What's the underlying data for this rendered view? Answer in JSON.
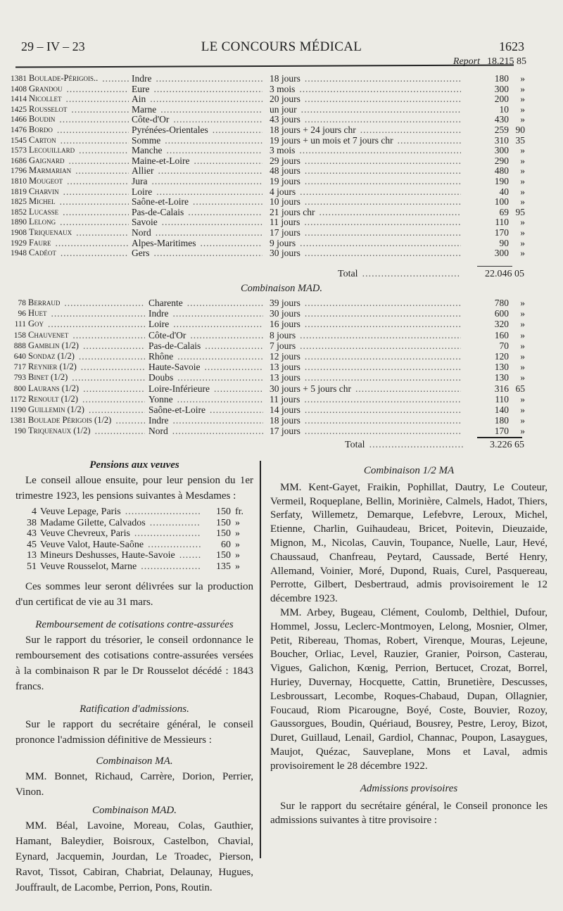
{
  "header": {
    "date": "29 – IV – 23",
    "title": "LE CONCOURS MÉDICAL",
    "page": "1623"
  },
  "report": {
    "label": "Report",
    "value": "18.215 85"
  },
  "table1": {
    "rows": [
      [
        "1381",
        "Boulade-Périgois..",
        "Indre",
        "18 jours",
        "180",
        "»"
      ],
      [
        "1408",
        "Grandou",
        "Eure",
        "3 mois",
        "300",
        "»"
      ],
      [
        "1414",
        "Nicollet",
        "Ain",
        "20 jours",
        "200",
        "»"
      ],
      [
        "1425",
        "Rousselot",
        "Marne",
        "un jour",
        "10",
        "»"
      ],
      [
        "1466",
        "Boudin",
        "Côte-d'Or",
        "43 jours",
        "430",
        "»"
      ],
      [
        "1476",
        "Bordo",
        "Pyrénées-Orientales",
        "18 jours + 24 jours chr",
        "259",
        "90"
      ],
      [
        "1545",
        "Carton",
        "Somme",
        "19 jours + un mois et 7 jours chr",
        "310",
        "35"
      ],
      [
        "1573",
        "Lecouillard",
        "Manche",
        "3 mois",
        "300",
        "»"
      ],
      [
        "1686",
        "Gaignard",
        "Maine-et-Loire",
        "29 jours",
        "290",
        "»"
      ],
      [
        "1796",
        "Marmarian",
        "Allier",
        "48 jours",
        "480",
        "»"
      ],
      [
        "1810",
        "Mougeot",
        "Jura",
        "19 jours",
        "190",
        "»"
      ],
      [
        "1819",
        "Charvin",
        "Loire",
        "4 jours",
        "40",
        "»"
      ],
      [
        "1825",
        "Michel",
        "Saône-et-Loire",
        "10 jours",
        "100",
        "»"
      ],
      [
        "1852",
        "Lucasse",
        "Pas-de-Calais",
        "21 jours chr",
        "69",
        "95"
      ],
      [
        "1890",
        "Lelong",
        "Savoie",
        "11 jours",
        "110",
        "»"
      ],
      [
        "1908",
        "Triquenaux",
        "Nord",
        "17 jours",
        "170",
        "»"
      ],
      [
        "1929",
        "Faure",
        "Alpes-Maritimes",
        "9 jours",
        "90",
        "»"
      ],
      [
        "1948",
        "Cadéot",
        "Gers",
        "30 jours",
        "300",
        "»"
      ]
    ],
    "total_label": "Total",
    "total_value": "22.046 05"
  },
  "table2": {
    "title": "Combinaison MAD.",
    "rows": [
      [
        "78",
        "Berraud",
        "Charente",
        "39 jours",
        "780",
        "»"
      ],
      [
        "96",
        "Huet",
        "Indre",
        "30 jours",
        "600",
        "»"
      ],
      [
        "111",
        "Goy",
        "Loire",
        "16 jours",
        "320",
        "»"
      ],
      [
        "158",
        "Chauvenet",
        "Côte-d'Or",
        "8 jours",
        "160",
        "»"
      ],
      [
        "888",
        "Gamblin (1/2)",
        "Pas-de-Calais",
        "7 jours",
        "70",
        "»"
      ],
      [
        "640",
        "Sondaz (1/2)",
        "Rhône",
        "12 jours",
        "120",
        "»"
      ],
      [
        "717",
        "Reynier (1/2)",
        "Haute-Savoie",
        "13 jours",
        "130",
        "»"
      ],
      [
        "793",
        "Binet (1/2)",
        "Doubs",
        "13 jours",
        "130",
        "»"
      ],
      [
        "800",
        "Laurans (1/2)",
        "Loire-Inférieure",
        "30 jours + 5 jours chr",
        "316",
        "65"
      ],
      [
        "1172",
        "Renoult (1/2)",
        "Yonne",
        "11 jours",
        "110",
        "»"
      ],
      [
        "1190",
        "Guillemin (1/2)",
        "Saône-et-Loire",
        "14 jours",
        "140",
        "»"
      ],
      [
        "1381",
        "Boulade Périgois (1/2)",
        "Indre",
        "18 jours",
        "180",
        "»"
      ],
      [
        "190",
        "Triquenaux (1/2)",
        "Nord",
        "17 jours",
        "170",
        "»"
      ]
    ],
    "total_label": "Total",
    "total_value": "3.226 65"
  },
  "left": {
    "pensions_title": "Pensions aux veuves",
    "pensions_intro": "Le conseil alloue ensuite, pour leur pension du 1er trimestre 1923, les pensions suivantes à Mesdames :",
    "pensions": [
      [
        "4",
        "Veuve Lepage, Paris",
        "150",
        "fr."
      ],
      [
        "38",
        "Madame Gilette, Calvados",
        "150",
        "»"
      ],
      [
        "43",
        "Veuve Chevreux, Paris",
        "150",
        "»"
      ],
      [
        "45",
        "Veuve Valot, Haute-Saône",
        "60",
        "»"
      ],
      [
        "13",
        "Mineurs Deshusses, Haute-Savoie",
        "150",
        "»"
      ],
      [
        "51",
        "Veuve Rousselot, Marne",
        "135",
        "»"
      ]
    ],
    "pensions_note": "Ces sommes leur seront délivrées sur la production d'un certificat de vie au 31 mars.",
    "remb_title": "Remboursement de cotisations contre-assurées",
    "remb_text": "Sur le rapport du trésorier, le conseil ordonnance le remboursement des cotisations contre-assurées versées à la combinaison R par le Dr Rousselot décédé : 1843 francs.",
    "ratif_title": "Ratification d'admissions.",
    "ratif_text": "Sur le rapport du secrétaire général, le conseil prononce l'admission définitive de Messieurs :",
    "ma_title": "Combinaison MA.",
    "ma_text": "MM. Bonnet, Richaud, Carrère, Dorion, Perrier, Vinon.",
    "mad_title": "Combinaison MAD.",
    "mad_text": "MM. Béal, Lavoine, Moreau, Colas, Gauthier, Hamant, Baleydier, Boisroux, Castelbon, Chavial, Eynard, Jacquemin, Jourdan, Le Troadec, Pierson, Ravot, Tissot, Cabiran, Chabriat, Delaunay, Hugues, Jouffrault, de Lacombe, Perrion, Pons, Routin."
  },
  "right": {
    "half_ma_title": "Combinaison 1/2 MA",
    "half_ma_text1": "MM. Kent-Gayet, Fraikin, Pophillat, Dautry, Le Couteur, Vermeil, Roqueplane, Bellin, Morinière, Calmels, Hadot, Thiers, Serfaty, Willemetz, Demarque, Lefebvre, Leroux, Michel, Etienne, Charlin, Guihaudeau, Bricet, Poitevin, Dieuzaide, Mignon, M., Nicolas, Cauvin, Toupance, Nuelle, Laur, Hevé, Chaussaud, Chanfreau, Peytard, Caussade, Berté Henry, Allemand, Voinier, Moré, Dupond, Ruais, Curel, Pasquereau, Perrotte, Gilbert, Desbertraud, admis provisoirement le 12 décembre 1923.",
    "half_ma_text2": "MM. Arbey, Bugeau, Clément, Coulomb, Delthiel, Dufour, Hommel, Jossu, Leclerc-Montmoyen, Lelong, Mosnier, Olmer, Petit, Ribereau, Thomas, Robert, Virenque, Mouras, Lejeune, Boucher, Orliac, Level, Rauzier, Granier, Poirson, Casterau, Vigues, Galichon, Kœnig, Perrion, Bertucet, Crozat, Borrel, Huriey, Duvernay, Hocquette, Cattin, Brunetière, Descusses, Lesbroussart, Lecombe, Roques-Chabaud, Dupan, Ollagnier, Foucaud, Riom Picarougne, Boyé, Coste, Bouvier, Rozoy, Gaussorgues, Boudin, Quériaud, Bousrey, Pestre, Leroy, Bizot, Duret, Guillaud, Lenail, Gardiol, Channac, Poupon, Lasaygues, Maujot, Quézac, Sauveplane, Mons et Laval, admis provisoirement le 28 décembre 1922.",
    "adm_title": "Admissions provisoires",
    "adm_text": "Sur le rapport du secrétaire général, le Conseil prononce les admissions suivantes à titre provisoire :"
  }
}
